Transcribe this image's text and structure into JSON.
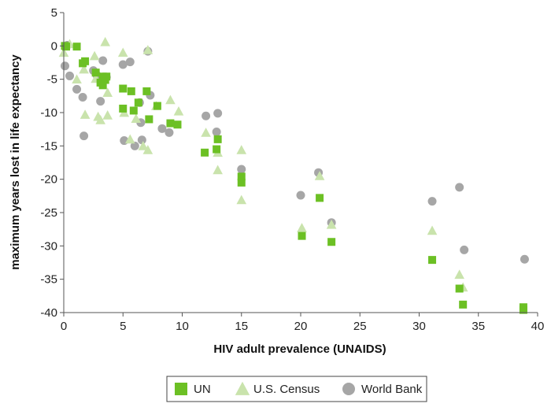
{
  "chart_data": {
    "type": "scatter",
    "xlabel": "HIV adult prevalence (UNAIDS)",
    "ylabel": "maximum years lost in life expectancy",
    "xlim": [
      0,
      40
    ],
    "ylim": [
      -40,
      5
    ],
    "xticks": [
      0,
      5,
      10,
      15,
      20,
      25,
      30,
      35,
      40
    ],
    "yticks": [
      5,
      0,
      -5,
      -10,
      -15,
      -20,
      -25,
      -30,
      -35,
      -40
    ],
    "grid": false,
    "legend_position": "bottom-center",
    "series": [
      {
        "name": "UN",
        "marker": "square",
        "color": "#6cc024",
        "points": [
          [
            0.1,
            0
          ],
          [
            0.2,
            -0.1
          ],
          [
            1.1,
            -0.1
          ],
          [
            1.6,
            -2.6
          ],
          [
            1.8,
            -2.3
          ],
          [
            2.7,
            -4
          ],
          [
            3.1,
            -5.5
          ],
          [
            3.3,
            -5.9
          ],
          [
            3.5,
            -5.1
          ],
          [
            3.6,
            -4.6
          ],
          [
            3.3,
            -4.6
          ],
          [
            5,
            -6.4
          ],
          [
            5.7,
            -6.8
          ],
          [
            5,
            -9.4
          ],
          [
            5.9,
            -9.7
          ],
          [
            6.3,
            -8.5
          ],
          [
            7,
            -6.8
          ],
          [
            7.2,
            -11
          ],
          [
            7.9,
            -9
          ],
          [
            9,
            -11.6
          ],
          [
            9.6,
            -11.8
          ],
          [
            11.9,
            -16
          ],
          [
            13,
            -14
          ],
          [
            12.9,
            -15.5
          ],
          [
            15,
            -19.6
          ],
          [
            15,
            -20.5
          ],
          [
            20.1,
            -28.5
          ],
          [
            21.6,
            -22.8
          ],
          [
            22.6,
            -29.4
          ],
          [
            31.1,
            -32.1
          ],
          [
            33.4,
            -36.4
          ],
          [
            33.7,
            -38.8
          ],
          [
            38.8,
            -39.2
          ],
          [
            38.8,
            -39.6
          ]
        ]
      },
      {
        "name": "U.S. Census",
        "marker": "triangle",
        "color": "#c9e3ac",
        "points": [
          [
            0,
            -1
          ],
          [
            0.5,
            0.3
          ],
          [
            1.1,
            -5
          ],
          [
            1.7,
            -3.5
          ],
          [
            1.8,
            -10.3
          ],
          [
            2.6,
            -1.5
          ],
          [
            2.7,
            -4.9
          ],
          [
            2.9,
            -10.6
          ],
          [
            3.1,
            -11.1
          ],
          [
            3.5,
            0.6
          ],
          [
            3.7,
            -7
          ],
          [
            3.7,
            -10.4
          ],
          [
            5,
            -1
          ],
          [
            5.1,
            -10
          ],
          [
            5.6,
            -14
          ],
          [
            6.1,
            -10.9
          ],
          [
            6.7,
            -15
          ],
          [
            7.1,
            -15.6
          ],
          [
            7.1,
            -0.6
          ],
          [
            7.8,
            -9
          ],
          [
            9,
            -8.1
          ],
          [
            9.7,
            -9.8
          ],
          [
            12,
            -13
          ],
          [
            13,
            -16
          ],
          [
            13,
            -18.6
          ],
          [
            15,
            -15.6
          ],
          [
            15,
            -23.1
          ],
          [
            20.1,
            -27.3
          ],
          [
            21.6,
            -19.5
          ],
          [
            22.6,
            -26.8
          ],
          [
            31.1,
            -27.7
          ],
          [
            33.4,
            -34.3
          ],
          [
            33.7,
            -36.2
          ]
        ]
      },
      {
        "name": "World Bank",
        "marker": "circle",
        "color": "#a6a6a6",
        "points": [
          [
            0.1,
            -3
          ],
          [
            0.3,
            0.1
          ],
          [
            0.5,
            -4.5
          ],
          [
            1.1,
            -6.5
          ],
          [
            1.6,
            -7.7
          ],
          [
            1.7,
            -13.5
          ],
          [
            2.5,
            -3.7
          ],
          [
            2.8,
            -4.4
          ],
          [
            3.1,
            -8.3
          ],
          [
            3.3,
            -2.2
          ],
          [
            3.6,
            -4.7
          ],
          [
            5,
            -2.8
          ],
          [
            5.1,
            -14.2
          ],
          [
            5.6,
            -2.4
          ],
          [
            6,
            -15
          ],
          [
            6.4,
            -8.5
          ],
          [
            6.5,
            -11.5
          ],
          [
            6.6,
            -14.1
          ],
          [
            7.1,
            -0.8
          ],
          [
            7.3,
            -7.4
          ],
          [
            8.3,
            -12.4
          ],
          [
            8.9,
            -13
          ],
          [
            12,
            -10.5
          ],
          [
            12.9,
            -12.9
          ],
          [
            13,
            -10.1
          ],
          [
            15,
            -18.5
          ],
          [
            20,
            -22.4
          ],
          [
            21.5,
            -19
          ],
          [
            22.6,
            -26.5
          ],
          [
            31.1,
            -23.3
          ],
          [
            33.4,
            -21.2
          ],
          [
            33.8,
            -30.6
          ],
          [
            38.9,
            -32
          ]
        ]
      }
    ]
  }
}
